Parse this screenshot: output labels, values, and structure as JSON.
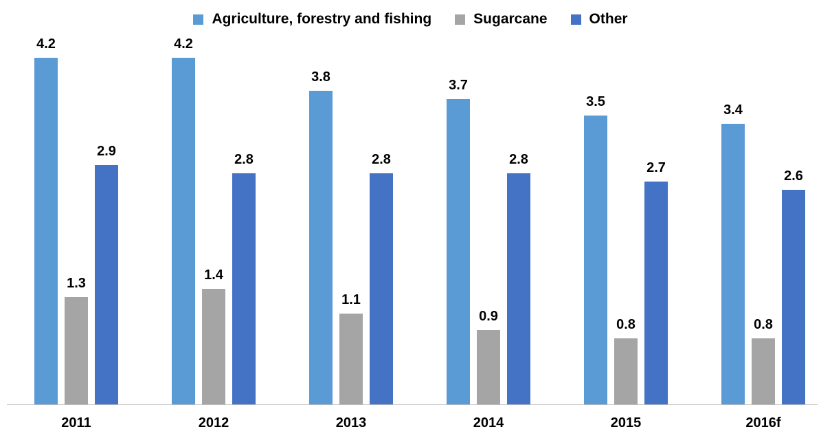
{
  "chart_data": {
    "type": "bar",
    "categories": [
      "2011",
      "2012",
      "2013",
      "2014",
      "2015",
      "2016f"
    ],
    "series": [
      {
        "name": "Agriculture, forestry and fishing",
        "color": "#5B9BD5",
        "values": [
          4.2,
          4.2,
          3.8,
          3.7,
          3.5,
          3.4
        ]
      },
      {
        "name": "Sugarcane",
        "color": "#A5A5A5",
        "values": [
          1.3,
          1.4,
          1.1,
          0.9,
          0.8,
          0.8
        ]
      },
      {
        "name": "Other",
        "color": "#4472C4",
        "values": [
          2.9,
          2.8,
          2.8,
          2.8,
          2.7,
          2.6
        ]
      }
    ],
    "title": "",
    "xlabel": "",
    "ylabel": "",
    "ylim": [
      0,
      4.2
    ],
    "grid": false,
    "legend_position": "top",
    "data_labels": true
  }
}
